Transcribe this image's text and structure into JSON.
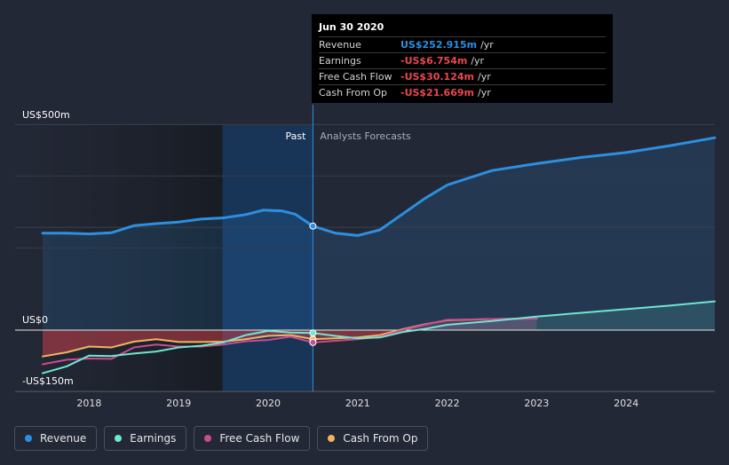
{
  "chart_data": {
    "type": "area",
    "y_axis": {
      "ticks": [
        "US$500m",
        "US$0",
        "-US$150m"
      ],
      "ylim": [
        -150,
        500
      ]
    },
    "x_axis": {
      "ticks": [
        "2018",
        "2019",
        "2020",
        "2021",
        "2022",
        "2023",
        "2024"
      ],
      "xlim": [
        2017.48,
        2024.99
      ]
    },
    "sections": {
      "past": "Past",
      "forecast": "Analysts Forecasts"
    },
    "divider_x": 2020.5,
    "highlight_range": [
      2019.49,
      2020.5
    ],
    "tooltip": {
      "date": "Jun 30 2020",
      "rows": [
        {
          "label": "Revenue",
          "value": "US$252.915m",
          "unit": "/yr",
          "color": "#2d8fe0"
        },
        {
          "label": "Earnings",
          "value": "-US$6.754m",
          "unit": "/yr",
          "color": "#e8484f"
        },
        {
          "label": "Free Cash Flow",
          "value": "-US$30.124m",
          "unit": "/yr",
          "color": "#e8484f"
        },
        {
          "label": "Cash From Op",
          "value": "-US$21.669m",
          "unit": "/yr",
          "color": "#e8484f"
        }
      ]
    },
    "series": [
      {
        "name": "Revenue",
        "color": "#2d8fe0",
        "x": [
          2017.48,
          2017.75,
          2018.0,
          2018.25,
          2018.5,
          2018.75,
          2019.0,
          2019.25,
          2019.5,
          2019.75,
          2019.95,
          2020.15,
          2020.3,
          2020.5,
          2020.75,
          2021.0,
          2021.25,
          2021.5,
          2021.75,
          2022.0,
          2022.5,
          2023.0,
          2023.5,
          2024.0,
          2024.5,
          2024.99
        ],
        "y": [
          236,
          236,
          234,
          237,
          254,
          259,
          263,
          270,
          273,
          281,
          292,
          290,
          282,
          253,
          236,
          230,
          244,
          282,
          320,
          353,
          388,
          405,
          420,
          432,
          449,
          468
        ]
      },
      {
        "name": "Earnings",
        "color": "#6fe6d1",
        "x": [
          2017.48,
          2017.75,
          2018.0,
          2018.25,
          2018.5,
          2018.75,
          2019.0,
          2019.25,
          2019.5,
          2019.75,
          2020.0,
          2020.25,
          2020.5,
          2020.75,
          2021.0,
          2021.25,
          2021.5,
          2021.75,
          2022.0,
          2022.5,
          2023.0,
          2023.5,
          2024.0,
          2024.5,
          2024.99
        ],
        "y": [
          -105,
          -88,
          -62,
          -63,
          -57,
          -52,
          -42,
          -38,
          -30,
          -12,
          -2,
          -6,
          -7,
          -14,
          -20,
          -18,
          -5,
          3,
          13,
          22,
          33,
          42,
          51,
          60,
          70
        ]
      },
      {
        "name": "Free Cash Flow",
        "color": "#c94d8f",
        "x": [
          2017.48,
          2017.75,
          2018.0,
          2018.25,
          2018.5,
          2018.75,
          2019.0,
          2019.25,
          2019.5,
          2019.75,
          2020.0,
          2020.25,
          2020.5,
          2020.75,
          2021.0,
          2021.25,
          2021.5,
          2021.75,
          2022.0,
          2022.5,
          2023.0
        ],
        "y": [
          -83,
          -72,
          -69,
          -70,
          -42,
          -35,
          -40,
          -40,
          -35,
          -27,
          -24,
          -16,
          -30,
          -26,
          -22,
          -16,
          0,
          13,
          25,
          27,
          28
        ]
      },
      {
        "name": "Cash From Op",
        "color": "#f0b461",
        "x": [
          2017.48,
          2017.75,
          2018.0,
          2018.25,
          2018.5,
          2018.75,
          2019.0,
          2019.25,
          2019.5,
          2019.75,
          2020.0,
          2020.25,
          2020.5,
          2020.75,
          2021.0,
          2021.25,
          2021.5,
          2021.75,
          2022.0,
          2022.5,
          2023.0
        ],
        "y": [
          -64,
          -54,
          -40,
          -42,
          -28,
          -22,
          -29,
          -29,
          -28,
          -22,
          -14,
          -12,
          -22,
          -20,
          -18,
          -12,
          2,
          14,
          24,
          27,
          28
        ]
      }
    ]
  }
}
